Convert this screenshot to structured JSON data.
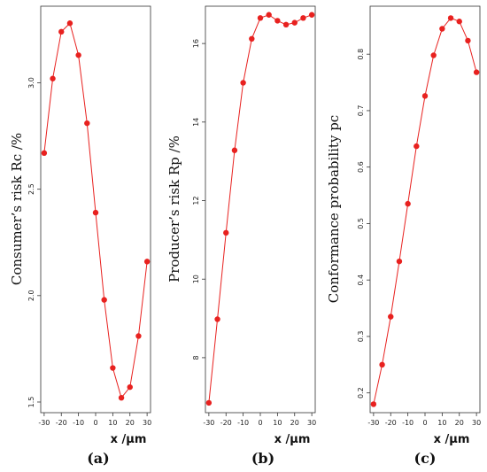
{
  "chart_data": [
    {
      "type": "line",
      "panel_label": "(a)",
      "xlabel": "x /μm",
      "ylabel": "Consumer’s risk Rc /%",
      "x": [
        -30,
        -25,
        -20,
        -15,
        -10,
        -5,
        0,
        5,
        10,
        15,
        20,
        25,
        30
      ],
      "series": [
        {
          "values": [
            2.67,
            3.02,
            3.24,
            3.28,
            3.13,
            2.81,
            2.39,
            1.98,
            1.66,
            1.52,
            1.57,
            1.81,
            2.16
          ]
        }
      ],
      "xticks": [
        -30,
        -20,
        -10,
        0,
        10,
        20,
        30
      ],
      "xtick_labels": [
        "-30",
        "-20",
        "-10",
        "0",
        "10",
        "20",
        "30"
      ],
      "yticks": [
        1.5,
        2.0,
        2.5,
        3.0
      ],
      "ytick_labels": [
        "1.5",
        "2.0",
        "2.5",
        "3.0"
      ],
      "xlim": [
        -32,
        32
      ],
      "ylim": [
        1.45,
        3.36
      ],
      "grid": false,
      "color": "#e8211f"
    },
    {
      "type": "line",
      "panel_label": "(b)",
      "xlabel": "x /μm",
      "ylabel": "Producer’s risk Rp /%",
      "x": [
        -30,
        -25,
        -20,
        -15,
        -10,
        -5,
        0,
        5,
        10,
        15,
        20,
        25,
        30
      ],
      "series": [
        {
          "values": [
            6.85,
            8.98,
            11.18,
            13.28,
            15.0,
            16.12,
            16.65,
            16.73,
            16.58,
            16.48,
            16.53,
            16.65,
            16.73
          ]
        }
      ],
      "xticks": [
        -30,
        -20,
        -10,
        0,
        10,
        20,
        30
      ],
      "xtick_labels": [
        "-30",
        "-20",
        "-10",
        "0",
        "10",
        "20",
        "30"
      ],
      "yticks": [
        8,
        10,
        12,
        14,
        16
      ],
      "ytick_labels": [
        "8",
        "10",
        "12",
        "14",
        "16"
      ],
      "xlim": [
        -32,
        32
      ],
      "ylim": [
        6.6,
        16.95
      ],
      "grid": false,
      "color": "#e8211f"
    },
    {
      "type": "line",
      "panel_label": "(c)",
      "xlabel": "x /μm",
      "ylabel": "Conformance probability pc",
      "x": [
        -30,
        -25,
        -20,
        -15,
        -10,
        -5,
        0,
        5,
        10,
        15,
        20,
        25,
        30
      ],
      "series": [
        {
          "values": [
            0.18,
            0.25,
            0.335,
            0.433,
            0.535,
            0.637,
            0.726,
            0.798,
            0.845,
            0.864,
            0.858,
            0.824,
            0.768
          ]
        }
      ],
      "xticks": [
        -30,
        -20,
        -10,
        0,
        10,
        20,
        30
      ],
      "xtick_labels": [
        "-30",
        "-20",
        "-10",
        "0",
        "10",
        "20",
        "30"
      ],
      "yticks": [
        0.2,
        0.3,
        0.4,
        0.5,
        0.6,
        0.7,
        0.8
      ],
      "ytick_labels": [
        "0.2",
        "0.3",
        "0.4",
        "0.5",
        "0.6",
        "0.7",
        "0.8"
      ],
      "xlim": [
        -32,
        32
      ],
      "ylim": [
        0.165,
        0.885
      ],
      "grid": false,
      "color": "#e8211f"
    }
  ]
}
